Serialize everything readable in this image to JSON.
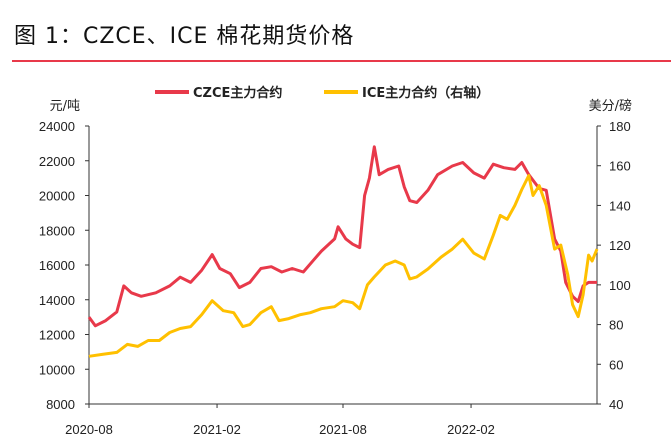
{
  "title": "图 1：CZCE、ICE 棉花期货价格",
  "colors": {
    "czce": "#e8394a",
    "ice": "#ffc000",
    "rule": "#e8394a"
  },
  "chart_data": {
    "type": "line",
    "title": "图 1：CZCE、ICE 棉花期货价格",
    "legend_placement": "top",
    "grid": false,
    "left_axis": {
      "label": "元/吨",
      "range": [
        8000,
        24000
      ],
      "ticks": [
        "24000",
        "22000",
        "20000",
        "18000",
        "16000",
        "14000",
        "12000",
        "10000",
        "8000"
      ]
    },
    "right_axis": {
      "label": "美分/磅",
      "range": [
        40,
        180
      ],
      "ticks": [
        "180",
        "160",
        "140",
        "120",
        "100",
        "80",
        "60",
        "40"
      ]
    },
    "x_axis": {
      "range": [
        "2020-08-01",
        "2022-08-01"
      ],
      "ticks": [
        "2020-08",
        "2021-02",
        "2021-08",
        "2022-02"
      ]
    },
    "series": [
      {
        "name": "CZCE主力合约",
        "axis": "left",
        "points": [
          [
            "2020-08-01",
            13000
          ],
          [
            "2020-08-10",
            12500
          ],
          [
            "2020-08-25",
            12800
          ],
          [
            "2020-09-10",
            13300
          ],
          [
            "2020-09-20",
            14800
          ],
          [
            "2020-10-01",
            14400
          ],
          [
            "2020-10-15",
            14200
          ],
          [
            "2020-11-05",
            14400
          ],
          [
            "2020-11-25",
            14800
          ],
          [
            "2020-12-10",
            15300
          ],
          [
            "2020-12-25",
            15000
          ],
          [
            "2021-01-10",
            15700
          ],
          [
            "2021-01-25",
            16600
          ],
          [
            "2021-02-05",
            15800
          ],
          [
            "2021-02-20",
            15500
          ],
          [
            "2021-03-05",
            14700
          ],
          [
            "2021-03-20",
            15000
          ],
          [
            "2021-04-05",
            15800
          ],
          [
            "2021-04-20",
            15900
          ],
          [
            "2021-05-05",
            15600
          ],
          [
            "2021-05-20",
            15800
          ],
          [
            "2021-06-05",
            15600
          ],
          [
            "2021-06-20",
            16300
          ],
          [
            "2021-07-01",
            16800
          ],
          [
            "2021-07-20",
            17500
          ],
          [
            "2021-07-25",
            18200
          ],
          [
            "2021-08-05",
            17500
          ],
          [
            "2021-08-15",
            17200
          ],
          [
            "2021-08-25",
            17000
          ],
          [
            "2021-09-01",
            20000
          ],
          [
            "2021-09-08",
            21000
          ],
          [
            "2021-09-15",
            22800
          ],
          [
            "2021-09-22",
            21200
          ],
          [
            "2021-10-05",
            21500
          ],
          [
            "2021-10-20",
            21700
          ],
          [
            "2021-10-28",
            20500
          ],
          [
            "2021-11-05",
            19700
          ],
          [
            "2021-11-15",
            19600
          ],
          [
            "2021-12-01",
            20300
          ],
          [
            "2021-12-15",
            21200
          ],
          [
            "2022-01-05",
            21700
          ],
          [
            "2022-01-20",
            21900
          ],
          [
            "2022-02-05",
            21300
          ],
          [
            "2022-02-20",
            21000
          ],
          [
            "2022-03-05",
            21800
          ],
          [
            "2022-03-20",
            21600
          ],
          [
            "2022-04-05",
            21500
          ],
          [
            "2022-04-15",
            21900
          ],
          [
            "2022-04-25",
            21200
          ],
          [
            "2022-05-10",
            20400
          ],
          [
            "2022-05-20",
            20300
          ],
          [
            "2022-06-01",
            17500
          ],
          [
            "2022-06-10",
            16800
          ],
          [
            "2022-06-17",
            15000
          ],
          [
            "2022-06-27",
            14200
          ],
          [
            "2022-07-05",
            13900
          ],
          [
            "2022-07-12",
            14800
          ],
          [
            "2022-07-20",
            15000
          ],
          [
            "2022-08-01",
            15000
          ]
        ]
      },
      {
        "name": "ICE主力合约（右轴）",
        "axis": "right",
        "points": [
          [
            "2020-08-01",
            64
          ],
          [
            "2020-08-20",
            65
          ],
          [
            "2020-09-10",
            66
          ],
          [
            "2020-09-25",
            70
          ],
          [
            "2020-10-10",
            69
          ],
          [
            "2020-10-25",
            72
          ],
          [
            "2020-11-10",
            72
          ],
          [
            "2020-11-25",
            76
          ],
          [
            "2020-12-10",
            78
          ],
          [
            "2020-12-25",
            79
          ],
          [
            "2021-01-10",
            85
          ],
          [
            "2021-01-25",
            92
          ],
          [
            "2021-02-10",
            87
          ],
          [
            "2021-02-25",
            86
          ],
          [
            "2021-03-10",
            79
          ],
          [
            "2021-03-20",
            80
          ],
          [
            "2021-04-05",
            86
          ],
          [
            "2021-04-20",
            89
          ],
          [
            "2021-05-01",
            82
          ],
          [
            "2021-05-15",
            83
          ],
          [
            "2021-06-01",
            85
          ],
          [
            "2021-06-15",
            86
          ],
          [
            "2021-07-01",
            88
          ],
          [
            "2021-07-20",
            89
          ],
          [
            "2021-08-01",
            92
          ],
          [
            "2021-08-15",
            91
          ],
          [
            "2021-08-25",
            88
          ],
          [
            "2021-09-05",
            100
          ],
          [
            "2021-09-15",
            104
          ],
          [
            "2021-10-01",
            110
          ],
          [
            "2021-10-15",
            112
          ],
          [
            "2021-10-28",
            110
          ],
          [
            "2021-11-05",
            103
          ],
          [
            "2021-11-15",
            104
          ],
          [
            "2021-12-01",
            108
          ],
          [
            "2021-12-20",
            114
          ],
          [
            "2022-01-05",
            118
          ],
          [
            "2022-01-20",
            123
          ],
          [
            "2022-02-05",
            116
          ],
          [
            "2022-02-20",
            113
          ],
          [
            "2022-03-05",
            125
          ],
          [
            "2022-03-15",
            135
          ],
          [
            "2022-03-25",
            133
          ],
          [
            "2022-04-05",
            140
          ],
          [
            "2022-04-15",
            148
          ],
          [
            "2022-04-25",
            155
          ],
          [
            "2022-05-01",
            145
          ],
          [
            "2022-05-10",
            150
          ],
          [
            "2022-05-20",
            140
          ],
          [
            "2022-06-01",
            118
          ],
          [
            "2022-06-10",
            120
          ],
          [
            "2022-06-20",
            105
          ],
          [
            "2022-06-27",
            90
          ],
          [
            "2022-07-05",
            84
          ],
          [
            "2022-07-12",
            95
          ],
          [
            "2022-07-20",
            115
          ],
          [
            "2022-07-25",
            112
          ],
          [
            "2022-08-01",
            118
          ]
        ]
      }
    ]
  }
}
